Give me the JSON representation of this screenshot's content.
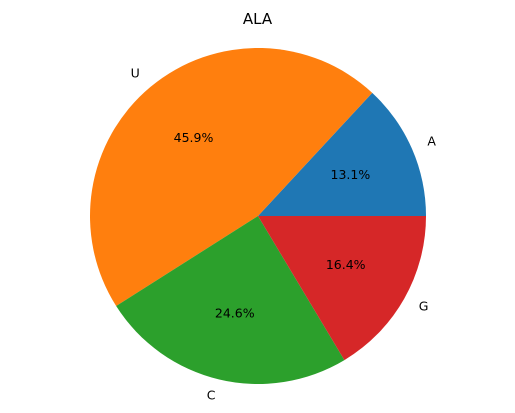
{
  "chart_data": {
    "type": "pie",
    "title": "ALA",
    "slices": [
      {
        "label": "A",
        "pct": 13.1,
        "pct_label": "13.1%",
        "color": "#1f77b4"
      },
      {
        "label": "U",
        "pct": 45.9,
        "pct_label": "45.9%",
        "color": "#ff7f0e"
      },
      {
        "label": "C",
        "pct": 24.6,
        "pct_label": "24.6%",
        "color": "#2ca02c"
      },
      {
        "label": "G",
        "pct": 16.4,
        "pct_label": "16.4%",
        "color": "#d62728"
      }
    ],
    "start_angle_deg": 0,
    "direction": "counterclockwise"
  }
}
